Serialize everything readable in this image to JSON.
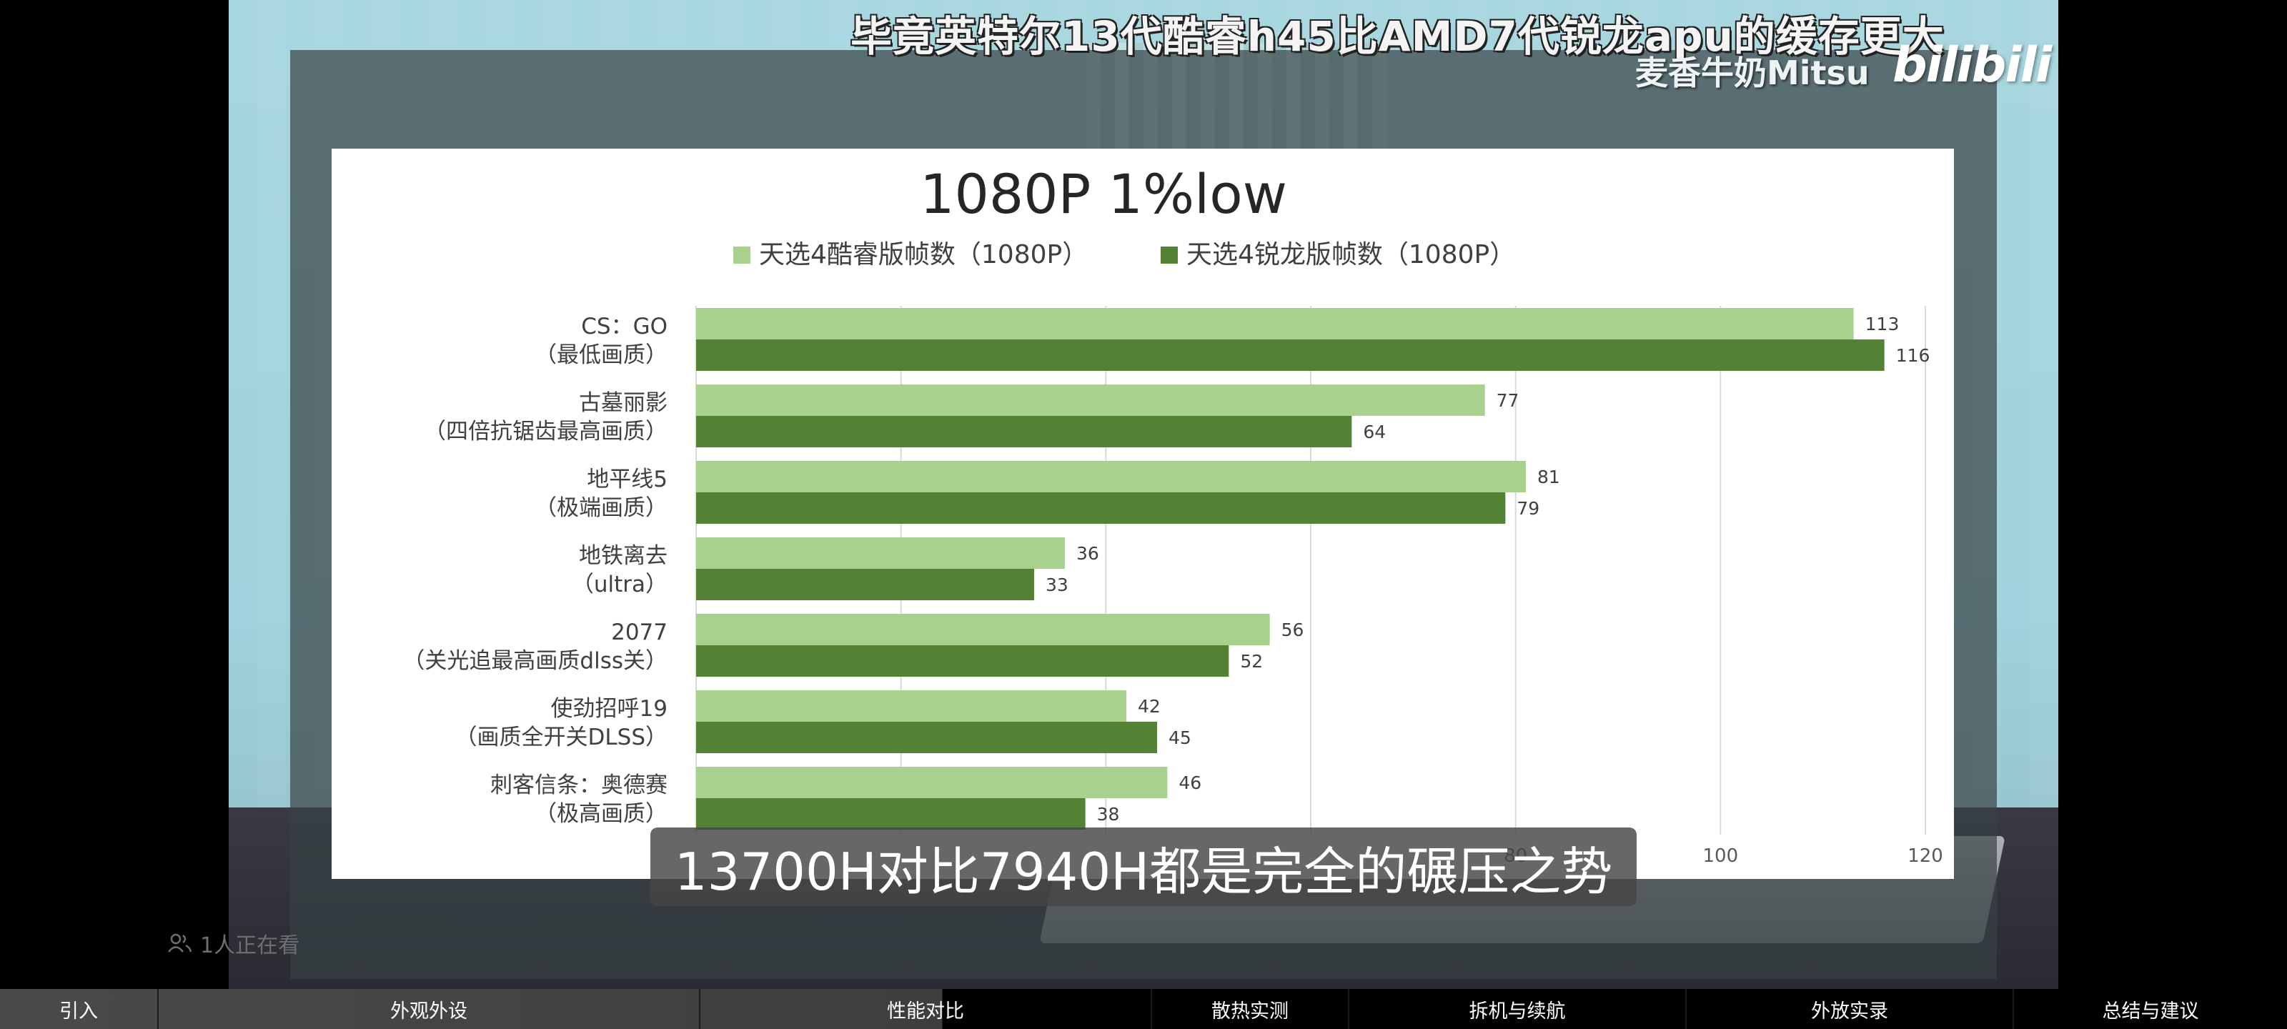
{
  "video": {
    "overlay_title": "毕竟英特尔13代酷睿h45比AMD7代锐龙apu的缓存更大",
    "uploader": "麦香牛奶Mitsu",
    "site_logo": "bilibili",
    "subtitle": "13700H对比7940H都是完全的碾压之势",
    "viewers": "1人正在看"
  },
  "chapters": [
    {
      "label": "引入"
    },
    {
      "label": "外观外设"
    },
    {
      "label": "性能对比"
    },
    {
      "label": "散热实测"
    },
    {
      "label": "拆机与续航"
    },
    {
      "label": "外放实录"
    },
    {
      "label": "总结与建议"
    }
  ],
  "chart_data": {
    "type": "bar",
    "orientation": "horizontal",
    "title": "1080P 1%low",
    "categories": [
      [
        "CS：GO",
        "（最低画质）"
      ],
      [
        "古墓丽影",
        "（四倍抗锯齿最高画质）"
      ],
      [
        "地平线5",
        "（极端画质）"
      ],
      [
        "地铁离去",
        "（ultra）"
      ],
      [
        "2077",
        "（关光追最高画质dlss关）"
      ],
      [
        "使劲招呼19",
        "（画质全开关DLSS）"
      ],
      [
        "刺客信条：奥德赛",
        "（极高画质）"
      ]
    ],
    "series": [
      {
        "name": "天选4酷睿版帧数（1080P）",
        "color": "#a9d18e",
        "values": [
          113,
          77,
          81,
          36,
          56,
          42,
          46
        ]
      },
      {
        "name": "天选4锐龙版帧数（1080P）",
        "color": "#548235",
        "values": [
          116,
          64,
          79,
          33,
          52,
          45,
          38
        ]
      }
    ],
    "xlim": [
      0,
      120
    ],
    "xticks": [
      0,
      20,
      40,
      60,
      80,
      100,
      120
    ],
    "visible_xtick_labels": [
      "80",
      "100",
      "120"
    ],
    "grid": true,
    "legend_position": "top"
  }
}
